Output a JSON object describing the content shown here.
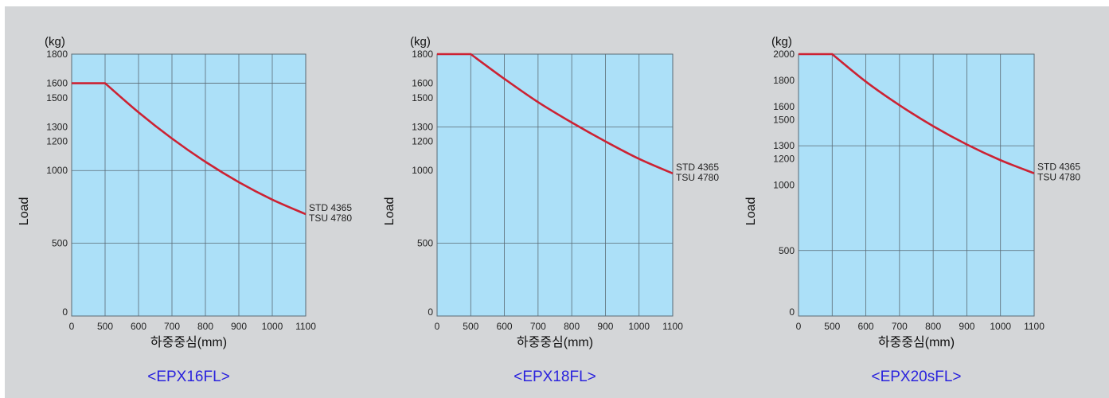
{
  "colors": {
    "background": "#d4d6d8",
    "plot_fill": "#ace0f8",
    "grid": "#5a6a74",
    "curve": "#cc2233",
    "caption": "#2a22dd"
  },
  "chart_data": [
    {
      "type": "line",
      "title": "<EPX16FL>",
      "unit_label": "(kg)",
      "xlabel": "하중중심(mm)",
      "ylabel": "Load",
      "xlim": [
        0,
        1100
      ],
      "ylim": [
        0,
        1800
      ],
      "x_ticks": [
        0,
        500,
        600,
        700,
        800,
        900,
        1000,
        1100
      ],
      "y_ticks": [
        0,
        500,
        1000,
        1200,
        1300,
        1500,
        1600,
        1800
      ],
      "x_grid": [
        500,
        600,
        700,
        800,
        900,
        1000,
        1100
      ],
      "y_grid": [
        500,
        1000,
        1600
      ],
      "grid": true,
      "annotation": [
        "STD 4365",
        "TSU 4780"
      ],
      "series": [
        {
          "x": [
            0,
            500,
            600,
            700,
            800,
            900,
            1000,
            1100
          ],
          "y": [
            1600,
            1600,
            1400,
            1220,
            1060,
            920,
            800,
            700
          ]
        }
      ]
    },
    {
      "type": "line",
      "title": "<EPX18FL>",
      "unit_label": "(kg)",
      "xlabel": "하중중심(mm)",
      "ylabel": "Load",
      "xlim": [
        0,
        1100
      ],
      "ylim": [
        0,
        1800
      ],
      "x_ticks": [
        0,
        500,
        600,
        700,
        800,
        900,
        1000,
        1100
      ],
      "y_ticks": [
        0,
        500,
        1000,
        1200,
        1300,
        1500,
        1600,
        1800
      ],
      "x_grid": [
        500,
        600,
        700,
        800,
        900,
        1000,
        1100
      ],
      "y_grid": [
        500,
        1300
      ],
      "grid": true,
      "annotation": [
        "STD 4365",
        "TSU 4780"
      ],
      "series": [
        {
          "x": [
            0,
            500,
            600,
            700,
            800,
            900,
            1000,
            1100
          ],
          "y": [
            1800,
            1800,
            1630,
            1470,
            1330,
            1200,
            1080,
            980
          ]
        }
      ]
    },
    {
      "type": "line",
      "title": "<EPX20sFL>",
      "unit_label": "(kg)",
      "xlabel": "하중중심(mm)",
      "ylabel": "Load",
      "xlim": [
        0,
        1100
      ],
      "ylim": [
        0,
        2000
      ],
      "x_ticks": [
        0,
        500,
        600,
        700,
        800,
        900,
        1000,
        1100
      ],
      "y_ticks": [
        0,
        500,
        1000,
        1200,
        1300,
        1500,
        1600,
        1800,
        2000
      ],
      "x_grid": [
        500,
        600,
        700,
        800,
        900,
        1000,
        1100
      ],
      "y_grid": [
        500,
        1300
      ],
      "grid": true,
      "annotation": [
        "STD 4365",
        "TSU 4780"
      ],
      "series": [
        {
          "x": [
            0,
            500,
            600,
            700,
            800,
            900,
            1000,
            1100
          ],
          "y": [
            2000,
            2000,
            1790,
            1610,
            1450,
            1310,
            1190,
            1090
          ]
        }
      ]
    }
  ]
}
